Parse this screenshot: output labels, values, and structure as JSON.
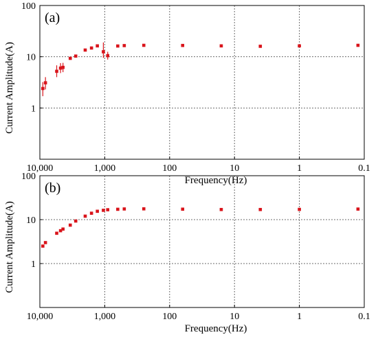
{
  "colors": {
    "marker": "#d9141b",
    "grid": "#6b6b6b",
    "axis": "#000000"
  },
  "chart_data": [
    {
      "type": "scatter",
      "panel_label": "(a)",
      "xlabel": "Frequency(Hz)",
      "ylabel": "Current Amplitude(A)",
      "x_scale": "log",
      "x_reversed": true,
      "y_scale": "log",
      "xlim": [
        10000,
        0.1
      ],
      "ylim": [
        0.1,
        100
      ],
      "x_ticks": [
        {
          "value": 10000,
          "label": "10,000"
        },
        {
          "value": 1000,
          "label": "1,000"
        },
        {
          "value": 100,
          "label": "100"
        },
        {
          "value": 10,
          "label": "10"
        },
        {
          "value": 1,
          "label": "1"
        },
        {
          "value": 0.1,
          "label": "0.1"
        }
      ],
      "y_ticks": [
        {
          "value": 100,
          "label": "100"
        },
        {
          "value": 10,
          "label": "10"
        },
        {
          "value": 1,
          "label": "1"
        }
      ],
      "grid": true,
      "grid_style": "dotted",
      "points": [
        {
          "x": 9000,
          "y": 2.4,
          "y_err_low": 1.7,
          "y_err_high": 3.2
        },
        {
          "x": 8200,
          "y": 3.1,
          "y_err_low": 2.3,
          "y_err_high": 4.0
        },
        {
          "x": 5500,
          "y": 5.2,
          "y_err_low": 4.0,
          "y_err_high": 6.8
        },
        {
          "x": 4800,
          "y": 6.0,
          "y_err_low": 4.8,
          "y_err_high": 7.5
        },
        {
          "x": 4400,
          "y": 6.2,
          "y_err_low": 5.0,
          "y_err_high": 7.6
        },
        {
          "x": 3400,
          "y": 9.3
        },
        {
          "x": 2800,
          "y": 10.3
        },
        {
          "x": 2000,
          "y": 13.5
        },
        {
          "x": 1600,
          "y": 14.8
        },
        {
          "x": 1300,
          "y": 16.3
        },
        {
          "x": 1050,
          "y": 12.5,
          "y_err_low": 9.5,
          "y_err_high": 19.0
        },
        {
          "x": 900,
          "y": 10.5,
          "y_err_low": 8.8,
          "y_err_high": 12.5
        },
        {
          "x": 630,
          "y": 16.2
        },
        {
          "x": 500,
          "y": 16.5
        },
        {
          "x": 250,
          "y": 16.7
        },
        {
          "x": 63,
          "y": 16.6
        },
        {
          "x": 16,
          "y": 16.3
        },
        {
          "x": 4,
          "y": 16.0
        },
        {
          "x": 1,
          "y": 16.3
        },
        {
          "x": 0.125,
          "y": 16.7
        }
      ]
    },
    {
      "type": "scatter",
      "panel_label": "(b)",
      "xlabel": "Frequency(Hz)",
      "ylabel": "Current Amplitude(A)",
      "x_scale": "log",
      "x_reversed": true,
      "y_scale": "log",
      "xlim": [
        10000,
        0.1
      ],
      "ylim": [
        0.1,
        100
      ],
      "x_ticks": [
        {
          "value": 10000,
          "label": "10,000"
        },
        {
          "value": 1000,
          "label": "1,000"
        },
        {
          "value": 100,
          "label": "100"
        },
        {
          "value": 10,
          "label": "10"
        },
        {
          "value": 1,
          "label": "1"
        },
        {
          "value": 0.1,
          "label": "0.1"
        }
      ],
      "y_ticks": [
        {
          "value": 100,
          "label": "100"
        },
        {
          "value": 10,
          "label": "10"
        },
        {
          "value": 1,
          "label": "1"
        }
      ],
      "grid": true,
      "grid_style": "dotted",
      "points": [
        {
          "x": 9000,
          "y": 2.5
        },
        {
          "x": 8200,
          "y": 3.0
        },
        {
          "x": 5500,
          "y": 4.9
        },
        {
          "x": 4800,
          "y": 5.6
        },
        {
          "x": 4400,
          "y": 6.1
        },
        {
          "x": 3400,
          "y": 7.5
        },
        {
          "x": 2800,
          "y": 9.3
        },
        {
          "x": 2000,
          "y": 12.0
        },
        {
          "x": 1600,
          "y": 14.0
        },
        {
          "x": 1300,
          "y": 15.5
        },
        {
          "x": 1050,
          "y": 16.3
        },
        {
          "x": 900,
          "y": 16.8
        },
        {
          "x": 630,
          "y": 17.2
        },
        {
          "x": 500,
          "y": 17.5
        },
        {
          "x": 250,
          "y": 17.6
        },
        {
          "x": 63,
          "y": 17.3
        },
        {
          "x": 16,
          "y": 17.0
        },
        {
          "x": 4,
          "y": 17.0
        },
        {
          "x": 1,
          "y": 17.1
        },
        {
          "x": 0.125,
          "y": 17.4
        }
      ]
    }
  ]
}
